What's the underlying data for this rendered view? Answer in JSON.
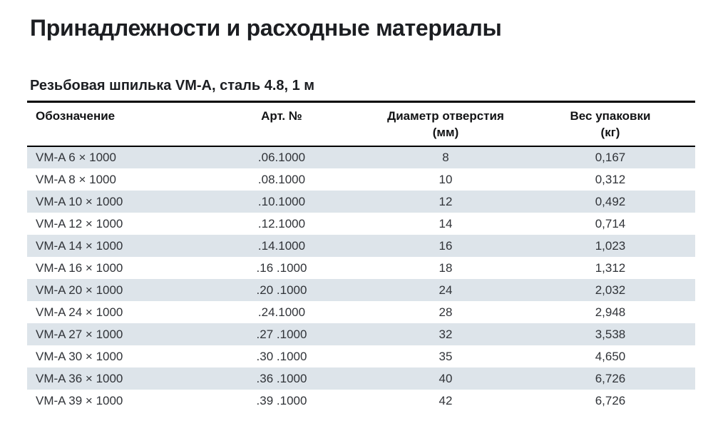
{
  "page": {
    "title": "Принадлежности и расходные материалы",
    "section_title": "Резьбовая шпилька VM-A, сталь 4.8, 1 м"
  },
  "table": {
    "columns": [
      {
        "label": "Обозначение",
        "unit": ""
      },
      {
        "label": "Арт. №",
        "unit": ""
      },
      {
        "label": "Диаметр отверстия",
        "unit": "(мм)"
      },
      {
        "label": "Вес упаковки",
        "unit": "(кг)"
      }
    ],
    "rows": [
      {
        "designation": "VM-A 6 × 1000",
        "art": ".06.1000",
        "diameter": "8",
        "weight": "0,167"
      },
      {
        "designation": "VM-A 8 × 1000",
        "art": ".08.1000",
        "diameter": "10",
        "weight": "0,312"
      },
      {
        "designation": "VM-A 10 × 1000",
        "art": ".10.1000",
        "diameter": "12",
        "weight": "0,492"
      },
      {
        "designation": "VM-A 12 × 1000",
        "art": ".12.1000",
        "diameter": "14",
        "weight": "0,714"
      },
      {
        "designation": "VM-A 14 × 1000",
        "art": ".14.1000",
        "diameter": "16",
        "weight": "1,023"
      },
      {
        "designation": "VM-A 16 × 1000",
        "art": ".16 .1000",
        "diameter": "18",
        "weight": "1,312"
      },
      {
        "designation": "VM-A 20 × 1000",
        "art": ".20 .1000",
        "diameter": "24",
        "weight": "2,032"
      },
      {
        "designation": "VM-A 24 × 1000",
        "art": ".24.1000",
        "diameter": "28",
        "weight": "2,948"
      },
      {
        "designation": "VM-A 27 × 1000",
        "art": ".27 .1000",
        "diameter": "32",
        "weight": "3,538"
      },
      {
        "designation": "VM-A 30 × 1000",
        "art": ".30 .1000",
        "diameter": "35",
        "weight": "4,650"
      },
      {
        "designation": "VM-A 36 × 1000",
        "art": ".36 .1000",
        "diameter": "40",
        "weight": "6,726"
      },
      {
        "designation": "VM-A 39 × 1000",
        "art": ".39 .1000",
        "diameter": "42",
        "weight": "6,726"
      }
    ]
  },
  "colors": {
    "stripe": "#dde4ea",
    "text": "#303338",
    "title": "#1c1e22",
    "border": "#000000"
  }
}
